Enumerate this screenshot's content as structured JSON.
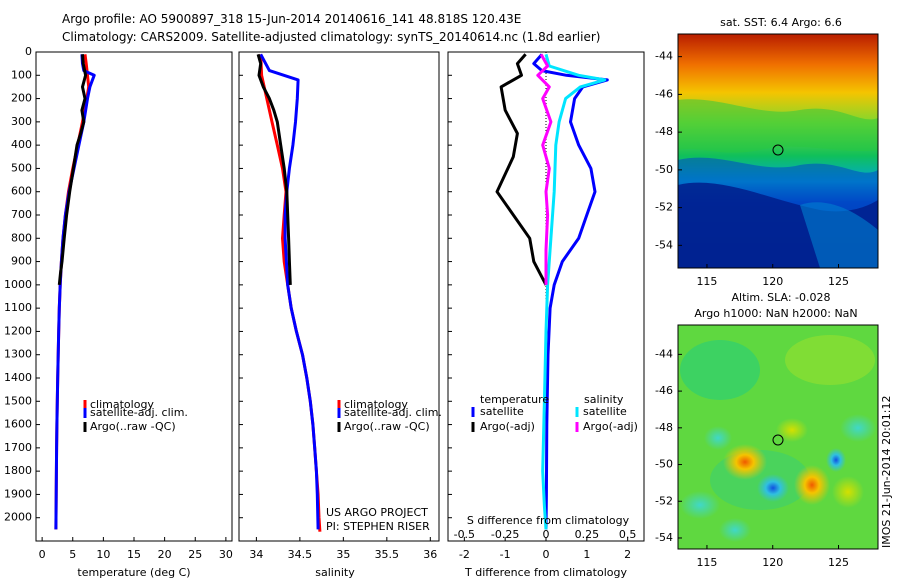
{
  "header": {
    "title_line1": "Argo profile: AO 5900897_318 15-Jun-2014 20140616_141 48.818S 120.43E",
    "title_line2": "Climatology: CARS2009. Satellite-adjusted climatology: synTS_20140614.nc (1.8d earlier)"
  },
  "colors": {
    "climatology": "#ff0000",
    "satellite": "#0000ff",
    "argo": "#000000",
    "satellite_salinity": "#00e5ff",
    "argo_salinity": "#ff00ff"
  },
  "credits": {
    "line1": "US ARGO PROJECT",
    "line2": "PI: STEPHEN RISER",
    "stamp": "IMOS 21-Jun-2014 20:01:12"
  },
  "legends": {
    "temperature": [
      "climatology",
      "satellite-adj. clim.",
      "Argo(..raw -QC)"
    ],
    "salinity": [
      "climatology",
      "satellite-adj. clim.",
      "Argo(..raw -QC)"
    ],
    "diff_temp_title": "temperature",
    "diff_temp": [
      "satellite",
      "Argo(-adj)"
    ],
    "diff_sal_title": "salinity",
    "diff_sal": [
      "satellite",
      "Argo(-adj)"
    ]
  },
  "maps": {
    "sst_title": "sat. SST: 6.4 Argo: 6.6",
    "sla_title1": "Altim. SLA: -0.028",
    "sla_title2": "Argo h1000: NaN h2000: NaN",
    "lat_ticks": [
      "-44",
      "-46",
      "-48",
      "-50",
      "-52",
      "-54"
    ],
    "lon_ticks": [
      "115",
      "120",
      "125"
    ],
    "argo_position": {
      "lon": 120.43,
      "lat": -48.818
    }
  },
  "chart_data": [
    {
      "type": "line",
      "xlabel": "temperature (deg C)",
      "ylabel": "",
      "xlim": [
        -1,
        31
      ],
      "ylim": [
        2100,
        0
      ],
      "x_ticks": [
        "0",
        "5",
        "10",
        "15",
        "20",
        "25",
        "30"
      ],
      "y_ticks": [
        "0",
        "100",
        "200",
        "300",
        "400",
        "500",
        "600",
        "700",
        "800",
        "900",
        "1000",
        "1100",
        "1200",
        "1300",
        "1400",
        "1500",
        "1600",
        "1700",
        "1800",
        "1900",
        "2000"
      ],
      "series": [
        {
          "name": "climatology",
          "color": "#ff0000",
          "x": [
            7.0,
            7.2,
            7.4,
            7.6,
            7.3,
            6.6,
            5.8,
            5.0,
            4.3,
            3.8,
            3.4,
            3.15,
            2.95,
            2.8,
            2.7,
            2.62,
            2.55,
            2.48,
            2.42,
            2.36,
            2.3,
            2.25
          ],
          "y": [
            10,
            50,
            100,
            150,
            200,
            300,
            400,
            500,
            600,
            700,
            800,
            900,
            1000,
            1100,
            1200,
            1300,
            1400,
            1500,
            1600,
            1700,
            1900,
            2050
          ]
        },
        {
          "name": "satellite-adj. clim.",
          "color": "#0000ff",
          "x": [
            6.5,
            6.6,
            6.8,
            8.5,
            7.8,
            7.4,
            6.8,
            6.0,
            5.2,
            4.4,
            3.8,
            3.4,
            3.15,
            2.95,
            2.8,
            2.7,
            2.62,
            2.55,
            2.48,
            2.42,
            2.36,
            2.3,
            2.25
          ],
          "y": [
            10,
            50,
            80,
            100,
            150,
            200,
            300,
            400,
            500,
            600,
            700,
            800,
            900,
            1000,
            1100,
            1200,
            1300,
            1400,
            1500,
            1600,
            1700,
            1900,
            2050
          ]
        },
        {
          "name": "Argo(..raw -QC)",
          "color": "#000000",
          "x": [
            6.6,
            6.7,
            7.1,
            6.6,
            7.0,
            6.5,
            6.8,
            6.3,
            5.7,
            5.1,
            4.5,
            4.0,
            3.6,
            3.25,
            3.0,
            2.8
          ],
          "y": [
            10,
            50,
            100,
            150,
            200,
            250,
            300,
            350,
            400,
            500,
            600,
            700,
            800,
            900,
            950,
            1000
          ]
        }
      ]
    },
    {
      "type": "line",
      "xlabel": "salinity",
      "ylabel": "",
      "xlim": [
        33.8,
        36.1
      ],
      "ylim": [
        2100,
        0
      ],
      "x_ticks": [
        "34",
        "34.5",
        "35",
        "35.5",
        "36"
      ],
      "series": [
        {
          "name": "climatology",
          "color": "#ff0000",
          "x": [
            34.05,
            34.06,
            34.12,
            34.18,
            34.24,
            34.3,
            34.34,
            34.32,
            34.3,
            34.32,
            34.36,
            34.4,
            34.46,
            34.53,
            34.58,
            34.62,
            34.65,
            34.67,
            34.69,
            34.71,
            34.72,
            34.73
          ],
          "y": [
            10,
            100,
            200,
            300,
            400,
            500,
            600,
            700,
            800,
            900,
            1000,
            1100,
            1200,
            1300,
            1400,
            1500,
            1600,
            1700,
            1800,
            1900,
            2000,
            2060
          ]
        },
        {
          "name": "satellite-adj. clim.",
          "color": "#0000ff",
          "x": [
            34.05,
            34.15,
            34.48,
            34.47,
            34.45,
            34.42,
            34.38,
            34.35,
            34.33,
            34.33,
            34.36,
            34.4,
            34.46,
            34.53,
            34.58,
            34.62,
            34.65,
            34.67,
            34.69,
            34.7,
            34.71
          ],
          "y": [
            10,
            80,
            120,
            200,
            300,
            400,
            500,
            600,
            700,
            800,
            1000,
            1100,
            1200,
            1300,
            1400,
            1500,
            1600,
            1700,
            1800,
            1900,
            2050
          ]
        },
        {
          "name": "Argo(..raw -QC)",
          "color": "#000000",
          "x": [
            34.02,
            34.05,
            34.03,
            34.08,
            34.15,
            34.2,
            34.24,
            34.28,
            34.32,
            34.35,
            34.36,
            34.37,
            34.38,
            34.39
          ],
          "y": [
            10,
            50,
            100,
            150,
            200,
            250,
            300,
            400,
            500,
            600,
            700,
            800,
            900,
            1000
          ]
        }
      ]
    },
    {
      "type": "line",
      "xlabel": "T difference from climatology",
      "x2label": "S difference from climatology",
      "ylabel": "",
      "xlim": [
        -2.4,
        2.4
      ],
      "x2lim": [
        -0.6,
        0.6
      ],
      "ylim": [
        2100,
        0
      ],
      "x_ticks": [
        "-2",
        "-1",
        "0",
        "1",
        "2"
      ],
      "x2_ticks": [
        "-0.5",
        "-0.25",
        "0",
        "0.25",
        "0.5"
      ],
      "series": [
        {
          "name": "temperature satellite",
          "axis": "T",
          "color": "#0000ff",
          "x": [
            -0.1,
            -0.3,
            -0.1,
            0.5,
            1.5,
            0.9,
            0.7,
            0.6,
            0.8,
            1.1,
            1.2,
            1.0,
            0.8,
            0.4,
            0.2,
            0.1,
            0.05,
            0.02,
            0.01,
            0.0
          ],
          "y": [
            10,
            50,
            80,
            100,
            120,
            150,
            200,
            300,
            400,
            500,
            600,
            700,
            800,
            900,
            1000,
            1100,
            1300,
            1600,
            1900,
            2050
          ]
        },
        {
          "name": "temperature Argo(-adj)",
          "axis": "T",
          "color": "#000000",
          "x": [
            -0.5,
            -0.7,
            -0.6,
            -1.1,
            -1.0,
            -0.7,
            -0.8,
            -1.2,
            -0.4,
            -0.3,
            0.0
          ],
          "y": [
            10,
            50,
            100,
            150,
            250,
            350,
            450,
            600,
            800,
            900,
            1000
          ]
        },
        {
          "name": "salinity satellite",
          "axis": "S",
          "color": "#00e5ff",
          "x": [
            0.0,
            0.02,
            0.2,
            0.36,
            0.21,
            0.12,
            0.08,
            0.06,
            0.05,
            0.03,
            0.01,
            0.0,
            -0.01,
            -0.02,
            -0.01,
            0.0
          ],
          "y": [
            10,
            60,
            100,
            120,
            150,
            200,
            300,
            400,
            600,
            800,
            1000,
            1200,
            1500,
            1800,
            1950,
            2050
          ]
        },
        {
          "name": "salinity Argo(-adj)",
          "axis": "S",
          "color": "#ff00ff",
          "x": [
            -0.03,
            0.01,
            -0.05,
            0.02,
            -0.02,
            0.03,
            -0.02,
            0.02,
            0.0,
            0.01,
            0.0,
            0.0
          ],
          "y": [
            10,
            60,
            100,
            150,
            200,
            300,
            400,
            500,
            600,
            700,
            850,
            1000
          ]
        }
      ]
    }
  ]
}
